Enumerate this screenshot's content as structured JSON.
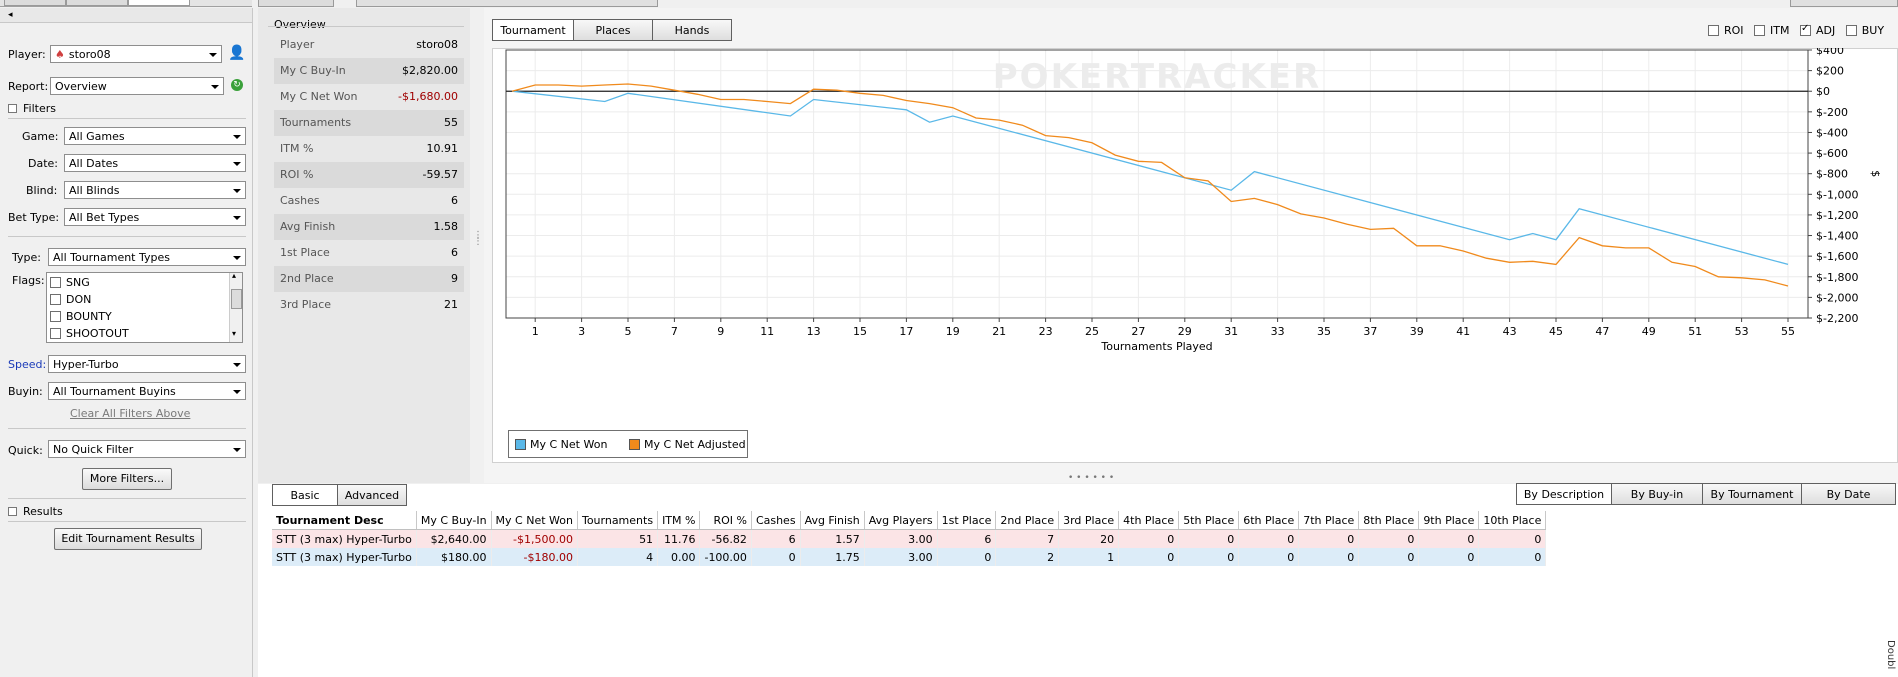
{
  "player": {
    "label": "Player:",
    "value": "storo08"
  },
  "report": {
    "label": "Report:",
    "value": "Overview"
  },
  "filters": {
    "header": "Filters",
    "game": {
      "label": "Game:",
      "value": "All Games"
    },
    "date": {
      "label": "Date:",
      "value": "All Dates"
    },
    "blind": {
      "label": "Blind:",
      "value": "All Blinds"
    },
    "bettype": {
      "label": "Bet Type:",
      "value": "All Bet Types"
    },
    "type": {
      "label": "Type:",
      "value": "All Tournament Types"
    },
    "flags_label": "Flags:",
    "flags": [
      "SNG",
      "DON",
      "BOUNTY",
      "SHOOTOUT"
    ],
    "speed": {
      "label": "Speed:",
      "value": "Hyper-Turbo"
    },
    "buyin": {
      "label": "Buyin:",
      "value": "All Tournament Buyins"
    },
    "clear": "Clear All Filters Above",
    "quick": {
      "label": "Quick:",
      "value": "No Quick Filter"
    },
    "more": "More Filters..."
  },
  "results": {
    "header": "Results",
    "edit": "Edit Tournament Results"
  },
  "overview": {
    "title": "Overview",
    "rows": [
      {
        "k": "Player",
        "v": "storo08"
      },
      {
        "k": "My C Buy-In",
        "v": "$2,820.00"
      },
      {
        "k": "My C Net Won",
        "v": "-$1,680.00",
        "neg": true
      },
      {
        "k": "Tournaments",
        "v": "55"
      },
      {
        "k": "ITM %",
        "v": "10.91"
      },
      {
        "k": "ROI %",
        "v": "-59.57"
      },
      {
        "k": "Cashes",
        "v": "6"
      },
      {
        "k": "Avg Finish",
        "v": "1.58"
      },
      {
        "k": "1st Place",
        "v": "6"
      },
      {
        "k": "2nd Place",
        "v": "9"
      },
      {
        "k": "3rd Place",
        "v": "21"
      }
    ]
  },
  "chart_tabs": [
    "Tournament",
    "Places",
    "Hands"
  ],
  "chart_opts": [
    {
      "label": "ROI",
      "checked": false
    },
    {
      "label": "ITM",
      "checked": false
    },
    {
      "label": "ADJ",
      "checked": true
    },
    {
      "label": "BUY",
      "checked": false
    }
  ],
  "chart_data": {
    "type": "line",
    "watermark": "POKERTRACKER",
    "xlabel": "Tournaments Played",
    "ylabel": "$",
    "xlim": [
      0,
      55
    ],
    "ylim": [
      -2200,
      400
    ],
    "x_ticks": [
      "1",
      "3",
      "5",
      "7",
      "9",
      "11",
      "13",
      "15",
      "17",
      "19",
      "21",
      "23",
      "25",
      "27",
      "29",
      "31",
      "33",
      "35",
      "37",
      "39",
      "41",
      "43",
      "45",
      "47",
      "49",
      "51",
      "53",
      "55"
    ],
    "y_ticks": [
      {
        "v": 400,
        "label": "$400"
      },
      {
        "v": 200,
        "label": "$200"
      },
      {
        "v": 0,
        "label": "$0"
      },
      {
        "v": -200,
        "label": "$-200"
      },
      {
        "v": -400,
        "label": "$-400"
      },
      {
        "v": -600,
        "label": "$-600"
      },
      {
        "v": -800,
        "label": "$-800"
      },
      {
        "v": -1000,
        "label": "$-1,000"
      },
      {
        "v": -1200,
        "label": "$-1,200"
      },
      {
        "v": -1400,
        "label": "$-1,400"
      },
      {
        "v": -1600,
        "label": "$-1,600"
      },
      {
        "v": -1800,
        "label": "$-1,800"
      },
      {
        "v": -2000,
        "label": "$-2,000"
      },
      {
        "v": -2200,
        "label": "$-2,200"
      }
    ],
    "series": [
      {
        "name": "My C Net Won",
        "color": "#5ab8e8",
        "points": [
          [
            0,
            0
          ],
          [
            4,
            -100
          ],
          [
            5,
            -20
          ],
          [
            12,
            -240
          ],
          [
            13,
            -80
          ],
          [
            17,
            -180
          ],
          [
            18,
            -300
          ],
          [
            19,
            -240
          ],
          [
            31,
            -960
          ],
          [
            32,
            -780
          ],
          [
            43,
            -1440
          ],
          [
            44,
            -1380
          ],
          [
            45,
            -1440
          ],
          [
            46,
            -1140
          ],
          [
            55,
            -1680
          ]
        ]
      },
      {
        "name": "My C Net Adjusted",
        "color": "#f08a1c",
        "points": [
          [
            0,
            0
          ],
          [
            1,
            60
          ],
          [
            2,
            60
          ],
          [
            3,
            50
          ],
          [
            4,
            60
          ],
          [
            5,
            70
          ],
          [
            6,
            50
          ],
          [
            7,
            10
          ],
          [
            8,
            -30
          ],
          [
            9,
            -80
          ],
          [
            10,
            -80
          ],
          [
            11,
            -100
          ],
          [
            12,
            -120
          ],
          [
            13,
            20
          ],
          [
            14,
            10
          ],
          [
            15,
            -20
          ],
          [
            16,
            -40
          ],
          [
            17,
            -90
          ],
          [
            18,
            -120
          ],
          [
            19,
            -160
          ],
          [
            20,
            -260
          ],
          [
            21,
            -280
          ],
          [
            22,
            -330
          ],
          [
            23,
            -430
          ],
          [
            24,
            -450
          ],
          [
            25,
            -500
          ],
          [
            26,
            -620
          ],
          [
            27,
            -680
          ],
          [
            28,
            -690
          ],
          [
            29,
            -840
          ],
          [
            30,
            -870
          ],
          [
            31,
            -1070
          ],
          [
            32,
            -1040
          ],
          [
            33,
            -1100
          ],
          [
            34,
            -1190
          ],
          [
            35,
            -1230
          ],
          [
            36,
            -1290
          ],
          [
            37,
            -1340
          ],
          [
            38,
            -1330
          ],
          [
            39,
            -1500
          ],
          [
            40,
            -1500
          ],
          [
            41,
            -1550
          ],
          [
            42,
            -1620
          ],
          [
            43,
            -1660
          ],
          [
            44,
            -1650
          ],
          [
            45,
            -1680
          ],
          [
            46,
            -1420
          ],
          [
            47,
            -1500
          ],
          [
            48,
            -1520
          ],
          [
            49,
            -1520
          ],
          [
            50,
            -1660
          ],
          [
            51,
            -1700
          ],
          [
            52,
            -1800
          ],
          [
            53,
            -1810
          ],
          [
            54,
            -1830
          ],
          [
            55,
            -1890
          ]
        ]
      }
    ]
  },
  "bottom_tabs": [
    "Basic",
    "Advanced"
  ],
  "group_tabs": [
    "By Description",
    "By Buy-in",
    "By Tournament",
    "By Date"
  ],
  "table": {
    "headers": [
      "Tournament Desc",
      "My C Buy-In",
      "My C Net Won",
      "Tournaments",
      "ITM %",
      "ROI %",
      "Cashes",
      "Avg Finish",
      "Avg Players",
      "1st Place",
      "2nd Place",
      "3rd Place",
      "4th Place",
      "5th Place",
      "6th Place",
      "7th Place",
      "8th Place",
      "9th Place",
      "10th Place"
    ],
    "rows": [
      [
        "STT (3 max) Hyper-Turbo",
        "$2,640.00",
        "-$1,500.00",
        "51",
        "11.76",
        "-56.82",
        "6",
        "1.57",
        "3.00",
        "6",
        "7",
        "20",
        "0",
        "0",
        "0",
        "0",
        "0",
        "0",
        "0"
      ],
      [
        "STT (3 max) Hyper-Turbo",
        "$180.00",
        "-$180.00",
        "4",
        "0.00",
        "-100.00",
        "0",
        "1.75",
        "3.00",
        "0",
        "2",
        "1",
        "0",
        "0",
        "0",
        "0",
        "0",
        "0",
        "0"
      ]
    ]
  },
  "side_text": "Doubl"
}
